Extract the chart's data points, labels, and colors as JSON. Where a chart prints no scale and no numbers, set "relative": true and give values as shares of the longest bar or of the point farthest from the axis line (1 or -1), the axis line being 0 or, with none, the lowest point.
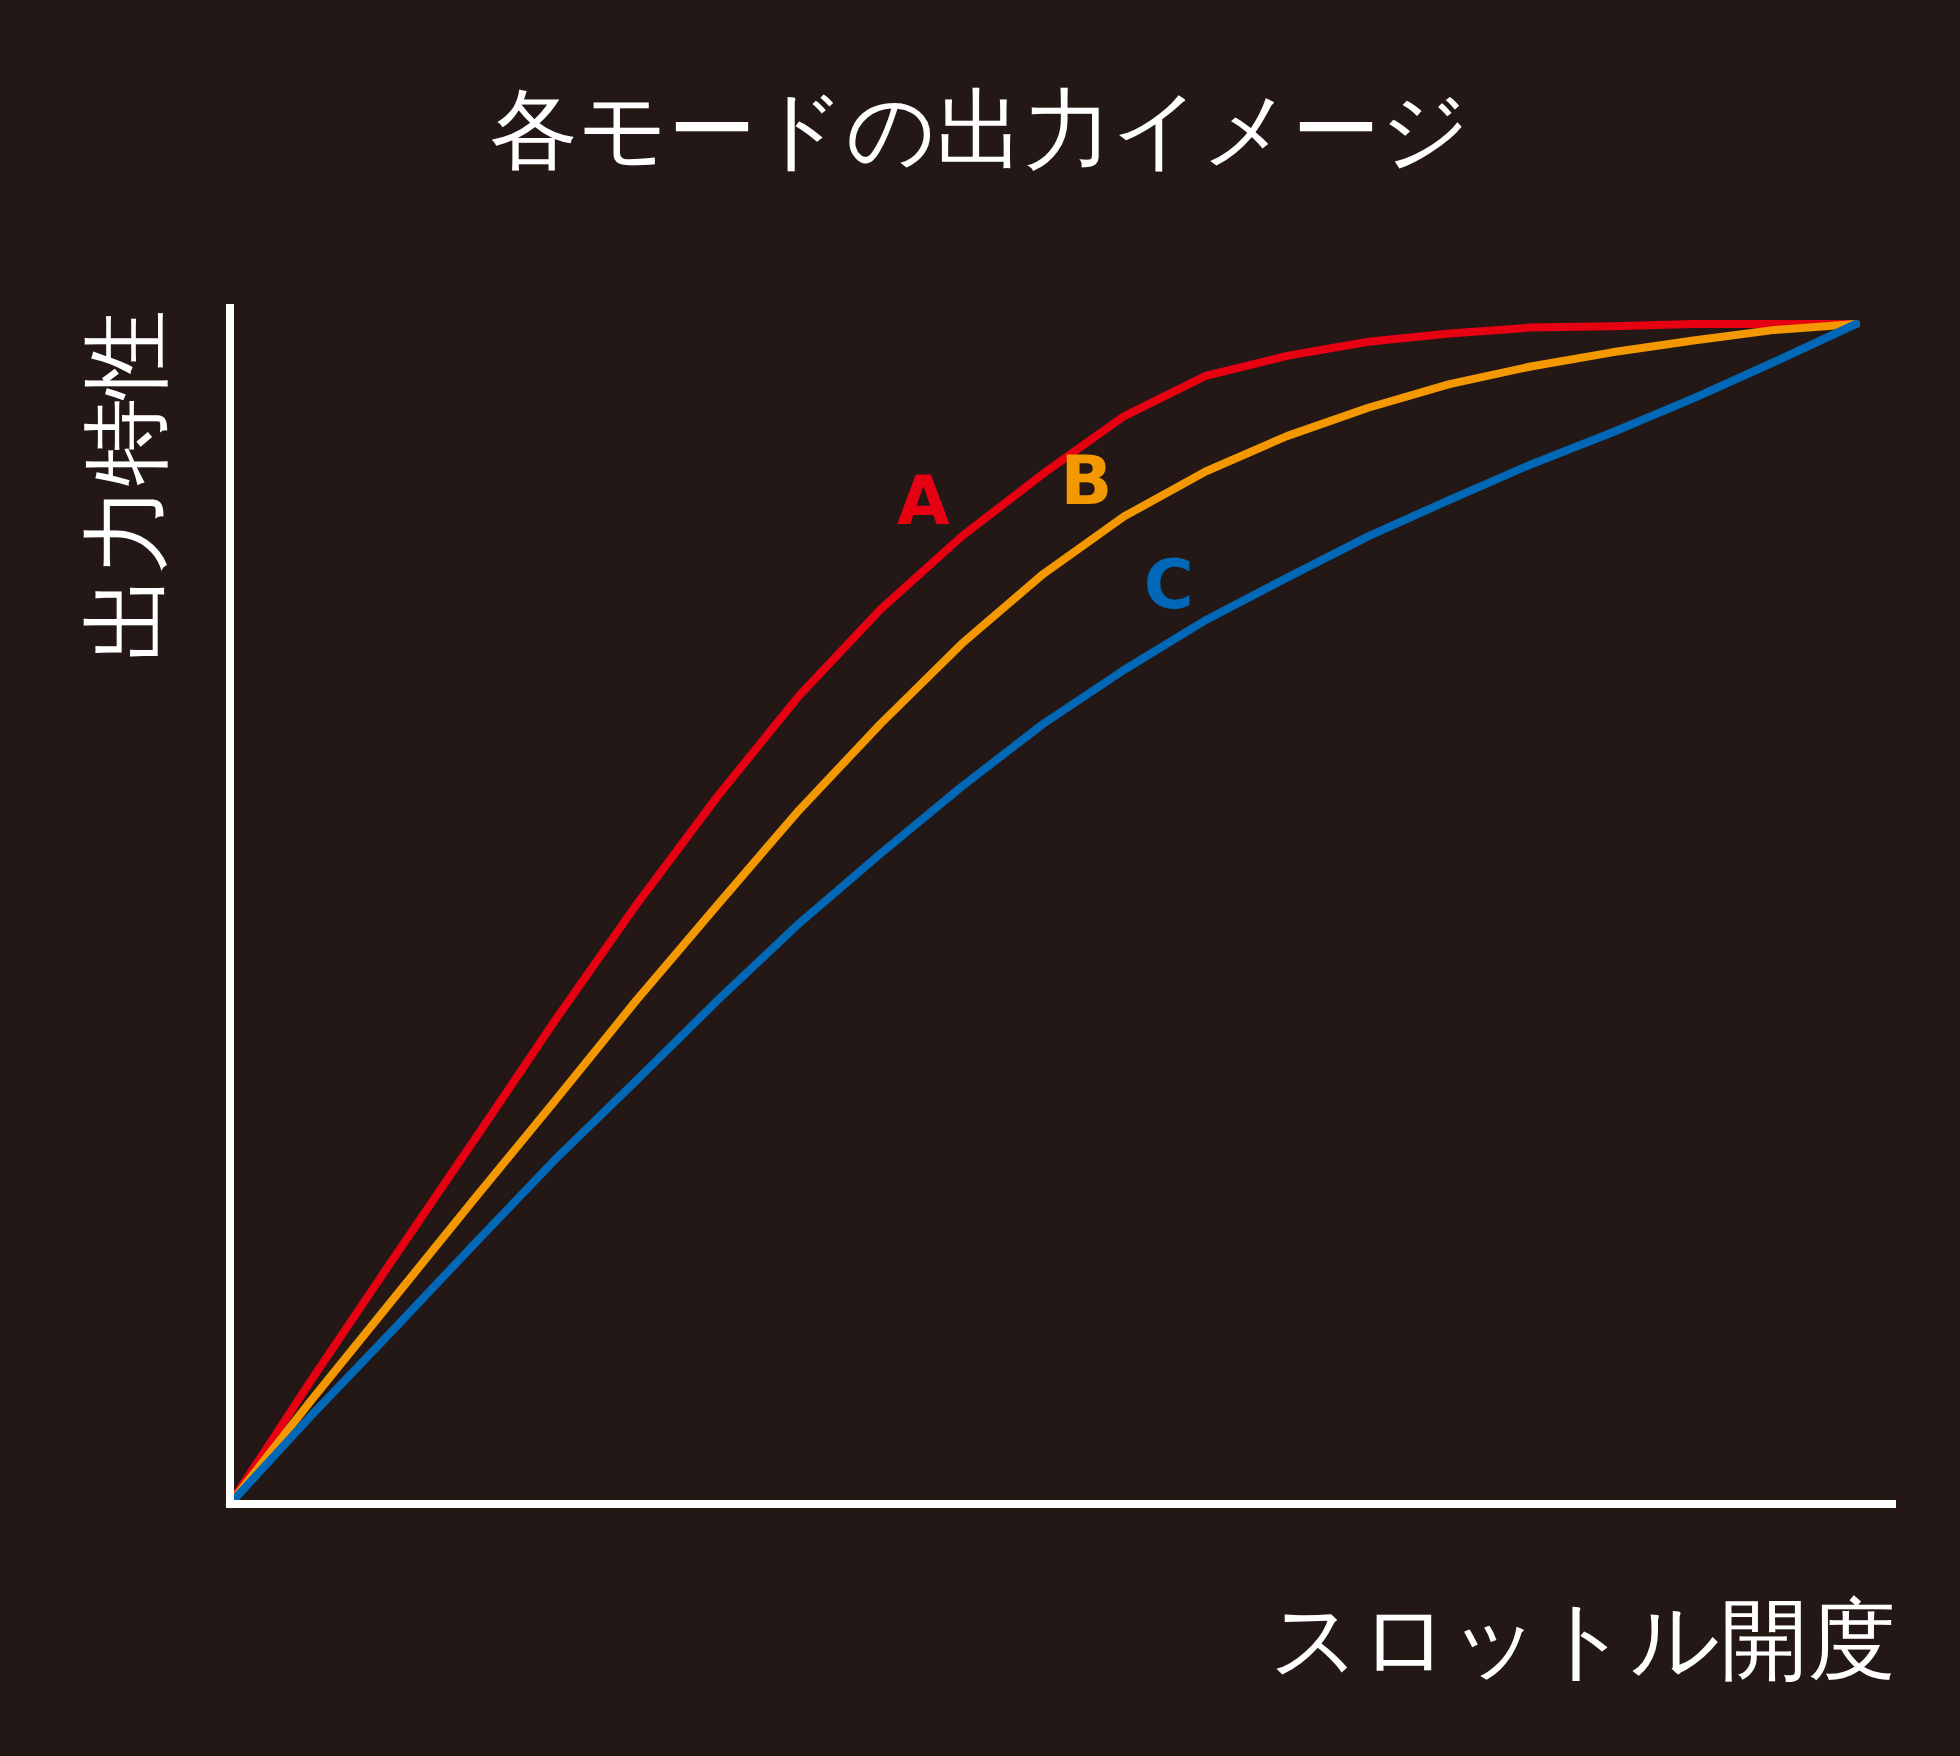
{
  "chart_data": {
    "type": "line",
    "title": "各モードの出力イメージ",
    "xlabel": "スロットル開度",
    "ylabel": "出力特性",
    "relative": true,
    "categories": [
      null,
      null,
      null,
      null,
      null,
      null,
      null,
      null,
      null,
      null,
      null,
      null,
      null,
      null,
      null,
      null,
      null,
      null,
      null,
      null,
      null
    ],
    "series": [
      {
        "name": "A",
        "color": "#e60012",
        "values": [
          0,
          0.105,
          0.207,
          0.308,
          0.41,
          0.508,
          0.6,
          0.685,
          0.758,
          0.82,
          0.873,
          0.922,
          0.956,
          0.973,
          0.985,
          0.992,
          0.997,
          0.998,
          1,
          1,
          1
        ]
      },
      {
        "name": "B",
        "color": "#f39800",
        "values": [
          0,
          0.088,
          0.173,
          0.258,
          0.342,
          0.427,
          0.508,
          0.588,
          0.661,
          0.729,
          0.788,
          0.837,
          0.875,
          0.905,
          0.929,
          0.949,
          0.964,
          0.976,
          0.986,
          0.995,
          1
        ]
      },
      {
        "name": "C",
        "color": "#0068b7",
        "values": [
          0,
          0.075,
          0.147,
          0.22,
          0.292,
          0.359,
          0.427,
          0.492,
          0.551,
          0.608,
          0.661,
          0.707,
          0.749,
          0.785,
          0.82,
          0.851,
          0.881,
          0.908,
          0.937,
          0.968,
          1
        ]
      }
    ]
  }
}
